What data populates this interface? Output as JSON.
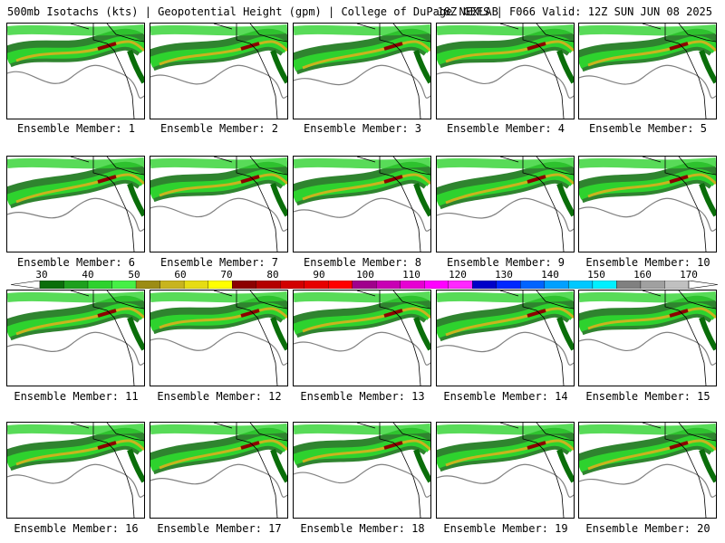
{
  "header": {
    "title_left": "500mb Isotachs (kts) | Geopotential Height (gpm) | College of DuPage NEXLAB",
    "title_right": "18Z GEFS | F066 Valid: 12Z SUN JUN 08 2025"
  },
  "panels": [
    {
      "label": "Ensemble Member: 1"
    },
    {
      "label": "Ensemble Member: 2"
    },
    {
      "label": "Ensemble Member: 3"
    },
    {
      "label": "Ensemble Member: 4"
    },
    {
      "label": "Ensemble Member: 5"
    },
    {
      "label": "Ensemble Member: 6"
    },
    {
      "label": "Ensemble Member: 7"
    },
    {
      "label": "Ensemble Member: 8"
    },
    {
      "label": "Ensemble Member: 9"
    },
    {
      "label": "Ensemble Member: 10"
    },
    {
      "label": "Ensemble Member: 11"
    },
    {
      "label": "Ensemble Member: 12"
    },
    {
      "label": "Ensemble Member: 13"
    },
    {
      "label": "Ensemble Member: 14"
    },
    {
      "label": "Ensemble Member: 15"
    },
    {
      "label": "Ensemble Member: 16"
    },
    {
      "label": "Ensemble Member: 17"
    },
    {
      "label": "Ensemble Member: 18"
    },
    {
      "label": "Ensemble Member: 19"
    },
    {
      "label": "Ensemble Member: 20"
    }
  ],
  "colorbar": {
    "labels": [
      "30",
      "40",
      "50",
      "60",
      "70",
      "80",
      "90",
      "100",
      "110",
      "120",
      "130",
      "140",
      "150",
      "160",
      "170"
    ],
    "colors": [
      "#0a6e0a",
      "#1ea01e",
      "#2ed22e",
      "#46f046",
      "#9c8c14",
      "#c8b41e",
      "#e6dc14",
      "#ffff00",
      "#8c0000",
      "#b40000",
      "#d20000",
      "#e60000",
      "#ff0000",
      "#a0008c",
      "#c800b4",
      "#e600d2",
      "#ff00ff",
      "#ff28ff",
      "#0000c8",
      "#0028ff",
      "#0064ff",
      "#00a0ff",
      "#00c8ff",
      "#00f0ff",
      "#808080",
      "#a0a0a0",
      "#c0c0c0"
    ]
  },
  "legend_colors": {
    "land_outline": "#000000",
    "height_contour": "#808080",
    "jet_dark": "#0a6e0a",
    "jet_mid": "#2ed22e",
    "jet_core": "#c8b41e",
    "jet_max": "#8c0000"
  }
}
